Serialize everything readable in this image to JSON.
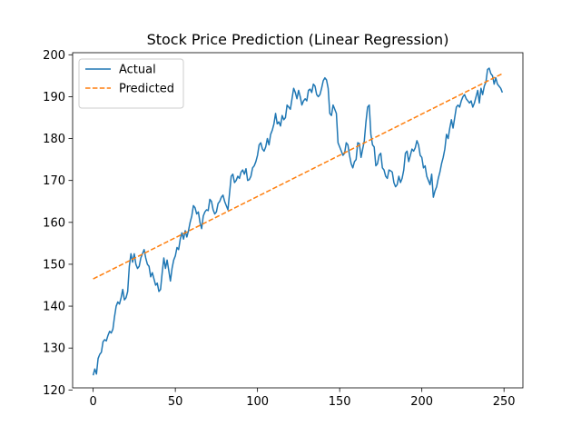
{
  "chart_data": {
    "type": "line",
    "title": "Stock Price Prediction (Linear Regression)",
    "xlabel": "",
    "ylabel": "",
    "xlim": [
      -12.5,
      261.5
    ],
    "ylim": [
      120.5,
      200.5
    ],
    "xticks": [
      0,
      50,
      100,
      150,
      200,
      250
    ],
    "yticks": [
      120,
      130,
      140,
      150,
      160,
      170,
      180,
      190,
      200
    ],
    "grid": false,
    "legend_position": "top-left",
    "series": [
      {
        "name": "Actual",
        "color": "#1f77b4",
        "style": "solid",
        "points": [
          [
            0,
            123.5
          ],
          [
            1,
            125
          ],
          [
            2,
            123.8
          ],
          [
            3,
            127.5
          ],
          [
            4,
            128.5
          ],
          [
            5,
            129
          ],
          [
            6,
            131.5
          ],
          [
            7,
            132
          ],
          [
            8,
            131.7
          ],
          [
            9,
            133
          ],
          [
            10,
            134
          ],
          [
            11,
            133.6
          ],
          [
            12,
            134.5
          ],
          [
            13,
            137.5
          ],
          [
            14,
            140
          ],
          [
            15,
            141
          ],
          [
            16,
            140.5
          ],
          [
            17,
            142
          ],
          [
            18,
            144
          ],
          [
            19,
            141.5
          ],
          [
            20,
            142
          ],
          [
            21,
            143.5
          ],
          [
            22,
            149.5
          ],
          [
            23,
            152.5
          ],
          [
            24,
            150.5
          ],
          [
            25,
            152.5
          ],
          [
            26,
            150
          ],
          [
            27,
            149
          ],
          [
            28,
            149.5
          ],
          [
            29,
            151.5
          ],
          [
            30,
            152.5
          ],
          [
            31,
            153.5
          ],
          [
            32,
            151.5
          ],
          [
            33,
            150
          ],
          [
            34,
            149.5
          ],
          [
            35,
            147
          ],
          [
            36,
            148
          ],
          [
            37,
            146.5
          ],
          [
            38,
            145
          ],
          [
            39,
            145.5
          ],
          [
            40,
            143.5
          ],
          [
            41,
            144
          ],
          [
            42,
            148
          ],
          [
            43,
            151.5
          ],
          [
            44,
            149
          ],
          [
            45,
            151
          ],
          [
            46,
            148.5
          ],
          [
            47,
            146
          ],
          [
            48,
            149
          ],
          [
            49,
            151
          ],
          [
            50,
            152
          ],
          [
            51,
            154
          ],
          [
            52,
            153.5
          ],
          [
            53,
            156
          ],
          [
            54,
            157.5
          ],
          [
            55,
            156
          ],
          [
            56,
            158
          ],
          [
            57,
            156.5
          ],
          [
            58,
            158
          ],
          [
            59,
            160
          ],
          [
            60,
            161.5
          ],
          [
            61,
            164
          ],
          [
            62,
            163.5
          ],
          [
            63,
            162
          ],
          [
            64,
            162.5
          ],
          [
            65,
            160
          ],
          [
            66,
            158.5
          ],
          [
            67,
            161.5
          ],
          [
            68,
            162.5
          ],
          [
            69,
            163
          ],
          [
            70,
            162.8
          ],
          [
            71,
            165.5
          ],
          [
            72,
            165
          ],
          [
            73,
            163
          ],
          [
            74,
            162
          ],
          [
            75,
            162.5
          ],
          [
            76,
            164.5
          ],
          [
            77,
            165
          ],
          [
            78,
            166
          ],
          [
            79,
            166.5
          ],
          [
            80,
            165
          ],
          [
            81,
            164
          ],
          [
            82,
            163
          ],
          [
            83,
            167
          ],
          [
            84,
            171
          ],
          [
            85,
            171.5
          ],
          [
            86,
            169.5
          ],
          [
            87,
            170
          ],
          [
            88,
            171
          ],
          [
            89,
            170.5
          ],
          [
            90,
            172
          ],
          [
            91,
            172.5
          ],
          [
            92,
            171.5
          ],
          [
            93,
            172.8
          ],
          [
            94,
            170
          ],
          [
            95,
            170.2
          ],
          [
            96,
            171
          ],
          [
            97,
            173
          ],
          [
            98,
            173.5
          ],
          [
            99,
            174.5
          ],
          [
            100,
            176
          ],
          [
            101,
            178.5
          ],
          [
            102,
            179
          ],
          [
            103,
            177.5
          ],
          [
            104,
            177
          ],
          [
            105,
            178
          ],
          [
            106,
            180
          ],
          [
            107,
            178.5
          ],
          [
            108,
            181
          ],
          [
            109,
            182
          ],
          [
            110,
            183.5
          ],
          [
            111,
            186
          ],
          [
            112,
            183.5
          ],
          [
            113,
            184
          ],
          [
            114,
            183
          ],
          [
            115,
            185.5
          ],
          [
            116,
            184.5
          ],
          [
            117,
            185
          ],
          [
            118,
            188
          ],
          [
            119,
            187.5
          ],
          [
            120,
            187
          ],
          [
            121,
            189.5
          ],
          [
            122,
            192
          ],
          [
            123,
            191
          ],
          [
            124,
            189.5
          ],
          [
            125,
            191.5
          ],
          [
            126,
            190
          ],
          [
            127,
            188
          ],
          [
            128,
            189
          ],
          [
            129,
            189.5
          ],
          [
            130,
            189
          ],
          [
            131,
            191.5
          ],
          [
            132,
            191.8
          ],
          [
            133,
            191
          ],
          [
            134,
            193
          ],
          [
            135,
            192.5
          ],
          [
            136,
            190.5
          ],
          [
            137,
            190
          ],
          [
            138,
            190.5
          ],
          [
            139,
            192
          ],
          [
            140,
            193.8
          ],
          [
            141,
            194.5
          ],
          [
            142,
            194
          ],
          [
            143,
            192
          ],
          [
            144,
            186
          ],
          [
            145,
            185.5
          ],
          [
            146,
            188
          ],
          [
            147,
            187
          ],
          [
            148,
            186
          ],
          [
            149,
            179
          ],
          [
            150,
            178
          ],
          [
            151,
            177
          ],
          [
            152,
            176
          ],
          [
            153,
            176.5
          ],
          [
            154,
            179
          ],
          [
            155,
            178.5
          ],
          [
            156,
            176
          ],
          [
            157,
            174
          ],
          [
            158,
            173
          ],
          [
            159,
            174.5
          ],
          [
            160,
            175
          ],
          [
            161,
            179
          ],
          [
            162,
            178.8
          ],
          [
            163,
            175.5
          ],
          [
            164,
            177.5
          ],
          [
            165,
            179.5
          ],
          [
            166,
            184
          ],
          [
            167,
            187.5
          ],
          [
            168,
            188
          ],
          [
            169,
            181
          ],
          [
            170,
            178.5
          ],
          [
            171,
            178
          ],
          [
            172,
            173.5
          ],
          [
            173,
            174
          ],
          [
            174,
            176
          ],
          [
            175,
            176.5
          ],
          [
            176,
            173
          ],
          [
            177,
            172.5
          ],
          [
            178,
            171
          ],
          [
            179,
            170.5
          ],
          [
            180,
            172.5
          ],
          [
            181,
            172.3
          ],
          [
            182,
            172
          ],
          [
            183,
            169.5
          ],
          [
            184,
            168.5
          ],
          [
            185,
            169
          ],
          [
            186,
            171
          ],
          [
            187,
            169.5
          ],
          [
            188,
            170.5
          ],
          [
            189,
            172.5
          ],
          [
            190,
            176.5
          ],
          [
            191,
            177
          ],
          [
            192,
            174.5
          ],
          [
            193,
            176
          ],
          [
            194,
            177.5
          ],
          [
            195,
            177
          ],
          [
            196,
            177.8
          ],
          [
            197,
            179.5
          ],
          [
            198,
            178.5
          ],
          [
            199,
            176
          ],
          [
            200,
            175.5
          ],
          [
            201,
            173
          ],
          [
            202,
            173.5
          ],
          [
            203,
            171
          ],
          [
            204,
            170
          ],
          [
            205,
            169
          ],
          [
            206,
            171.5
          ],
          [
            207,
            166
          ],
          [
            208,
            167.5
          ],
          [
            209,
            168.5
          ],
          [
            210,
            170.5
          ],
          [
            211,
            172
          ],
          [
            212,
            174
          ],
          [
            213,
            175.5
          ],
          [
            214,
            177.5
          ],
          [
            215,
            181
          ],
          [
            216,
            180
          ],
          [
            217,
            182.5
          ],
          [
            218,
            184.5
          ],
          [
            219,
            182.5
          ],
          [
            220,
            185
          ],
          [
            221,
            187.5
          ],
          [
            222,
            188
          ],
          [
            223,
            187.5
          ],
          [
            224,
            189
          ],
          [
            225,
            190
          ],
          [
            226,
            190.5
          ],
          [
            227,
            189.5
          ],
          [
            228,
            189
          ],
          [
            229,
            188.5
          ],
          [
            230,
            189
          ],
          [
            231,
            187.5
          ],
          [
            232,
            188.5
          ],
          [
            233,
            190
          ],
          [
            234,
            191.5
          ],
          [
            235,
            188.5
          ],
          [
            236,
            192
          ],
          [
            237,
            190.5
          ],
          [
            238,
            192.5
          ],
          [
            239,
            193.5
          ],
          [
            240,
            196.5
          ],
          [
            241,
            196.8
          ],
          [
            242,
            195.5
          ],
          [
            243,
            195
          ],
          [
            244,
            193
          ],
          [
            245,
            194.5
          ],
          [
            246,
            193
          ],
          [
            247,
            192.5
          ],
          [
            248,
            192
          ],
          [
            249,
            191
          ]
        ]
      },
      {
        "name": "Predicted",
        "color": "#ff7f0e",
        "style": "dashed",
        "points": [
          [
            0,
            146.5
          ],
          [
            249,
            195.5
          ]
        ]
      }
    ]
  }
}
